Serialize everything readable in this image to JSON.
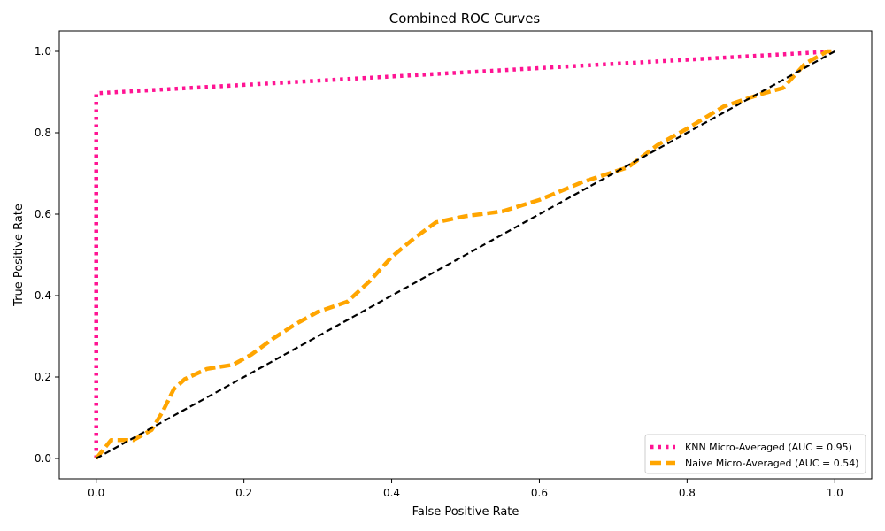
{
  "chart_data": {
    "type": "line",
    "title": "Combined ROC Curves",
    "xlabel": "False Positive Rate",
    "ylabel": "True Positive Rate",
    "xlim": [
      -0.05,
      1.05
    ],
    "ylim": [
      -0.05,
      1.05
    ],
    "xticks": [
      0.0,
      0.2,
      0.4,
      0.6,
      0.8,
      1.0
    ],
    "yticks": [
      0.0,
      0.2,
      0.4,
      0.6,
      0.8,
      1.0
    ],
    "xtick_labels": [
      "0.0",
      "0.2",
      "0.4",
      "0.6",
      "0.8",
      "1.0"
    ],
    "ytick_labels": [
      "0.0",
      "0.2",
      "0.4",
      "0.6",
      "0.8",
      "1.0"
    ],
    "grid": false,
    "legend_position": "lower-right",
    "series": [
      {
        "name": "KNN Micro-Averaged (AUC = 0.95)",
        "color": "#ff1493",
        "style": "dotted",
        "x": [
          0.0,
          0.0,
          0.0,
          1.0
        ],
        "y": [
          0.0,
          0.005,
          0.897,
          1.0
        ]
      },
      {
        "name": "Naive Micro-Averaged (AUC = 0.54)",
        "color": "#ffa500",
        "style": "dashed",
        "x": [
          0.0,
          0.02,
          0.05,
          0.075,
          0.09,
          0.105,
          0.12,
          0.15,
          0.185,
          0.21,
          0.24,
          0.27,
          0.3,
          0.34,
          0.37,
          0.4,
          0.43,
          0.46,
          0.5,
          0.55,
          0.6,
          0.66,
          0.72,
          0.76,
          0.8,
          0.85,
          0.9,
          0.93,
          0.96,
          0.99,
          1.0
        ],
        "y": [
          0.0,
          0.045,
          0.045,
          0.07,
          0.115,
          0.17,
          0.195,
          0.22,
          0.23,
          0.255,
          0.295,
          0.33,
          0.36,
          0.385,
          0.435,
          0.495,
          0.54,
          0.58,
          0.595,
          0.607,
          0.635,
          0.68,
          0.715,
          0.77,
          0.81,
          0.865,
          0.895,
          0.91,
          0.97,
          1.0,
          1.0
        ]
      },
      {
        "name": "",
        "color": "#000000",
        "style": "dashed",
        "x": [
          0.0,
          1.0
        ],
        "y": [
          0.0,
          1.0
        ]
      }
    ]
  }
}
